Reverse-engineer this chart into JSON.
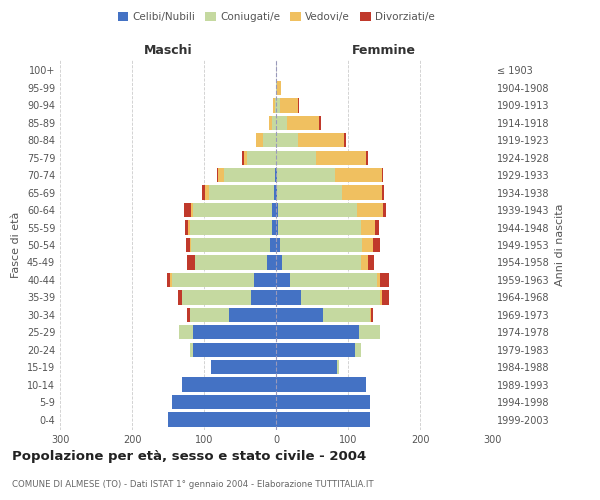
{
  "age_groups": [
    "0-4",
    "5-9",
    "10-14",
    "15-19",
    "20-24",
    "25-29",
    "30-34",
    "35-39",
    "40-44",
    "45-49",
    "50-54",
    "55-59",
    "60-64",
    "65-69",
    "70-74",
    "75-79",
    "80-84",
    "85-89",
    "90-94",
    "95-99",
    "100+"
  ],
  "birth_years": [
    "1999-2003",
    "1994-1998",
    "1989-1993",
    "1984-1988",
    "1979-1983",
    "1974-1978",
    "1969-1973",
    "1964-1968",
    "1959-1963",
    "1954-1958",
    "1949-1953",
    "1944-1948",
    "1939-1943",
    "1934-1938",
    "1929-1933",
    "1924-1928",
    "1919-1923",
    "1914-1918",
    "1909-1913",
    "1904-1908",
    "≤ 1903"
  ],
  "colors": {
    "celibi": "#4472c4",
    "coniugati": "#c5d9a0",
    "vedovi": "#f0c060",
    "divorziati": "#c0392b"
  },
  "males": {
    "celibi": [
      150,
      145,
      130,
      90,
      115,
      115,
      65,
      35,
      30,
      12,
      8,
      5,
      5,
      3,
      2,
      0,
      0,
      0,
      0,
      0,
      0
    ],
    "coniugati": [
      0,
      0,
      0,
      0,
      5,
      20,
      55,
      95,
      115,
      100,
      110,
      115,
      110,
      90,
      70,
      40,
      18,
      5,
      2,
      0,
      0
    ],
    "vedovi": [
      0,
      0,
      0,
      0,
      0,
      0,
      0,
      1,
      2,
      1,
      2,
      2,
      3,
      5,
      8,
      5,
      10,
      5,
      2,
      0,
      0
    ],
    "divorziati": [
      0,
      0,
      0,
      0,
      0,
      0,
      3,
      5,
      5,
      10,
      5,
      5,
      10,
      5,
      2,
      2,
      0,
      0,
      0,
      0,
      0
    ]
  },
  "females": {
    "nubili": [
      130,
      130,
      125,
      85,
      110,
      115,
      65,
      35,
      20,
      8,
      5,
      3,
      3,
      2,
      2,
      0,
      0,
      0,
      0,
      0,
      0
    ],
    "coniugate": [
      0,
      0,
      0,
      2,
      8,
      30,
      65,
      110,
      120,
      110,
      115,
      115,
      110,
      90,
      80,
      55,
      30,
      15,
      5,
      2,
      0
    ],
    "vedove": [
      0,
      0,
      0,
      0,
      0,
      0,
      2,
      2,
      5,
      10,
      15,
      20,
      35,
      55,
      65,
      70,
      65,
      45,
      25,
      5,
      0
    ],
    "divorziate": [
      0,
      0,
      0,
      0,
      0,
      0,
      3,
      10,
      12,
      8,
      10,
      5,
      5,
      3,
      2,
      3,
      2,
      2,
      2,
      0,
      0
    ]
  },
  "xlim": 300,
  "title": "Popolazione per età, sesso e stato civile - 2004",
  "subtitle": "COMUNE DI ALMESE (TO) - Dati ISTAT 1° gennaio 2004 - Elaborazione TUTTITALIA.IT",
  "xlabel_left": "Maschi",
  "xlabel_right": "Femmine",
  "ylabel_left": "Fasce di età",
  "ylabel_right": "Anni di nascita",
  "bg_color": "#ffffff",
  "grid_color": "#cccccc"
}
